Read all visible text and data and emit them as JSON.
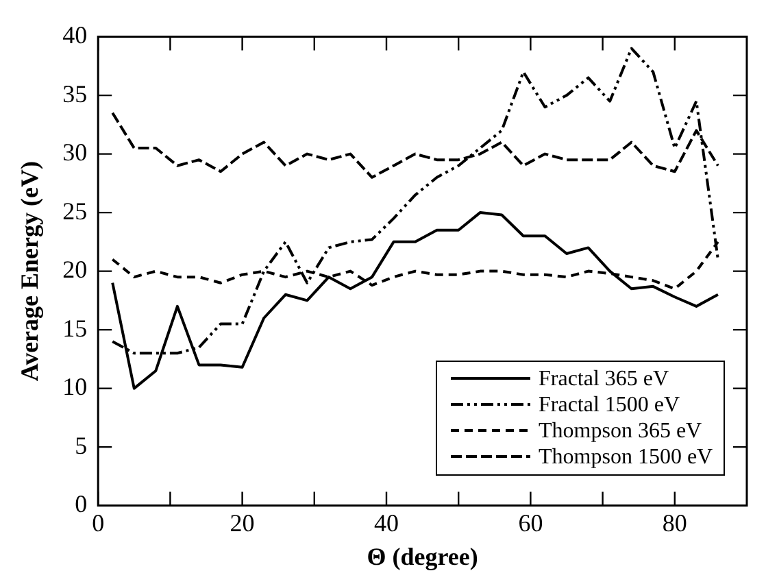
{
  "chart_data": {
    "type": "line",
    "xlabel": "Θ (degree)",
    "ylabel": "Average Energy (eV)",
    "x": [
      2,
      5,
      8,
      11,
      14,
      17,
      20,
      23,
      26,
      29,
      32,
      35,
      38,
      41,
      44,
      47,
      50,
      53,
      56,
      59,
      62,
      65,
      68,
      71,
      74,
      77,
      80,
      83,
      86
    ],
    "xlim": [
      0,
      90
    ],
    "xticks": [
      0,
      {
        "value": 10,
        "label": null
      },
      20,
      {
        "value": 30,
        "label": null
      },
      40,
      {
        "value": 50,
        "label": null
      },
      60,
      {
        "value": 70,
        "label": null
      },
      80
    ],
    "ylim": [
      0,
      40
    ],
    "yticks": [
      0,
      5,
      10,
      15,
      20,
      25,
      30,
      35,
      40
    ],
    "grid": false,
    "legend": "bottom right",
    "marker": "none",
    "series": [
      {
        "name": "Fractal 365 eV",
        "color": "#000000",
        "line_style": "solid",
        "values": [
          19,
          10,
          11.5,
          17,
          12,
          12,
          11.8,
          16,
          18,
          17.5,
          19.5,
          18.5,
          19.5,
          22.5,
          22.5,
          23.5,
          23.5,
          25,
          24.8,
          23,
          23,
          21.5,
          22,
          20,
          18.5,
          18.7,
          17.8,
          17,
          18
        ]
      },
      {
        "name": "Fractal 1500 eV",
        "color": "#000000",
        "line_style": "dotted",
        "values": [
          14,
          13,
          13,
          13,
          13.5,
          15.5,
          15.5,
          20,
          22.5,
          19,
          22,
          22.5,
          22.7,
          24.5,
          26.5,
          28,
          29,
          30.5,
          32,
          37,
          34,
          35,
          36.5,
          34.5,
          39,
          37,
          30.5,
          34.5,
          21
        ]
      },
      {
        "name": "Thompson 365 eV",
        "color": "#000000",
        "line_style": "dashed",
        "values": [
          21,
          19.5,
          20,
          19.5,
          19.5,
          19,
          19.7,
          20,
          19.5,
          20,
          19.5,
          20,
          18.8,
          19.5,
          20,
          19.7,
          19.7,
          20,
          20,
          19.7,
          19.7,
          19.5,
          20,
          19.8,
          19.5,
          19.2,
          18.5,
          20,
          22.5
        ]
      },
      {
        "name": "Thompson 1500 eV",
        "color": "#000000",
        "line_style": "dashed",
        "values": [
          33.5,
          30.5,
          30.5,
          29,
          29.5,
          28.5,
          30,
          31,
          29,
          30,
          29.5,
          30,
          28,
          29,
          30,
          29.5,
          29.5,
          30,
          31,
          29,
          30,
          29.5,
          29.5,
          29.5,
          31,
          29,
          28.5,
          32,
          29
        ]
      }
    ]
  }
}
